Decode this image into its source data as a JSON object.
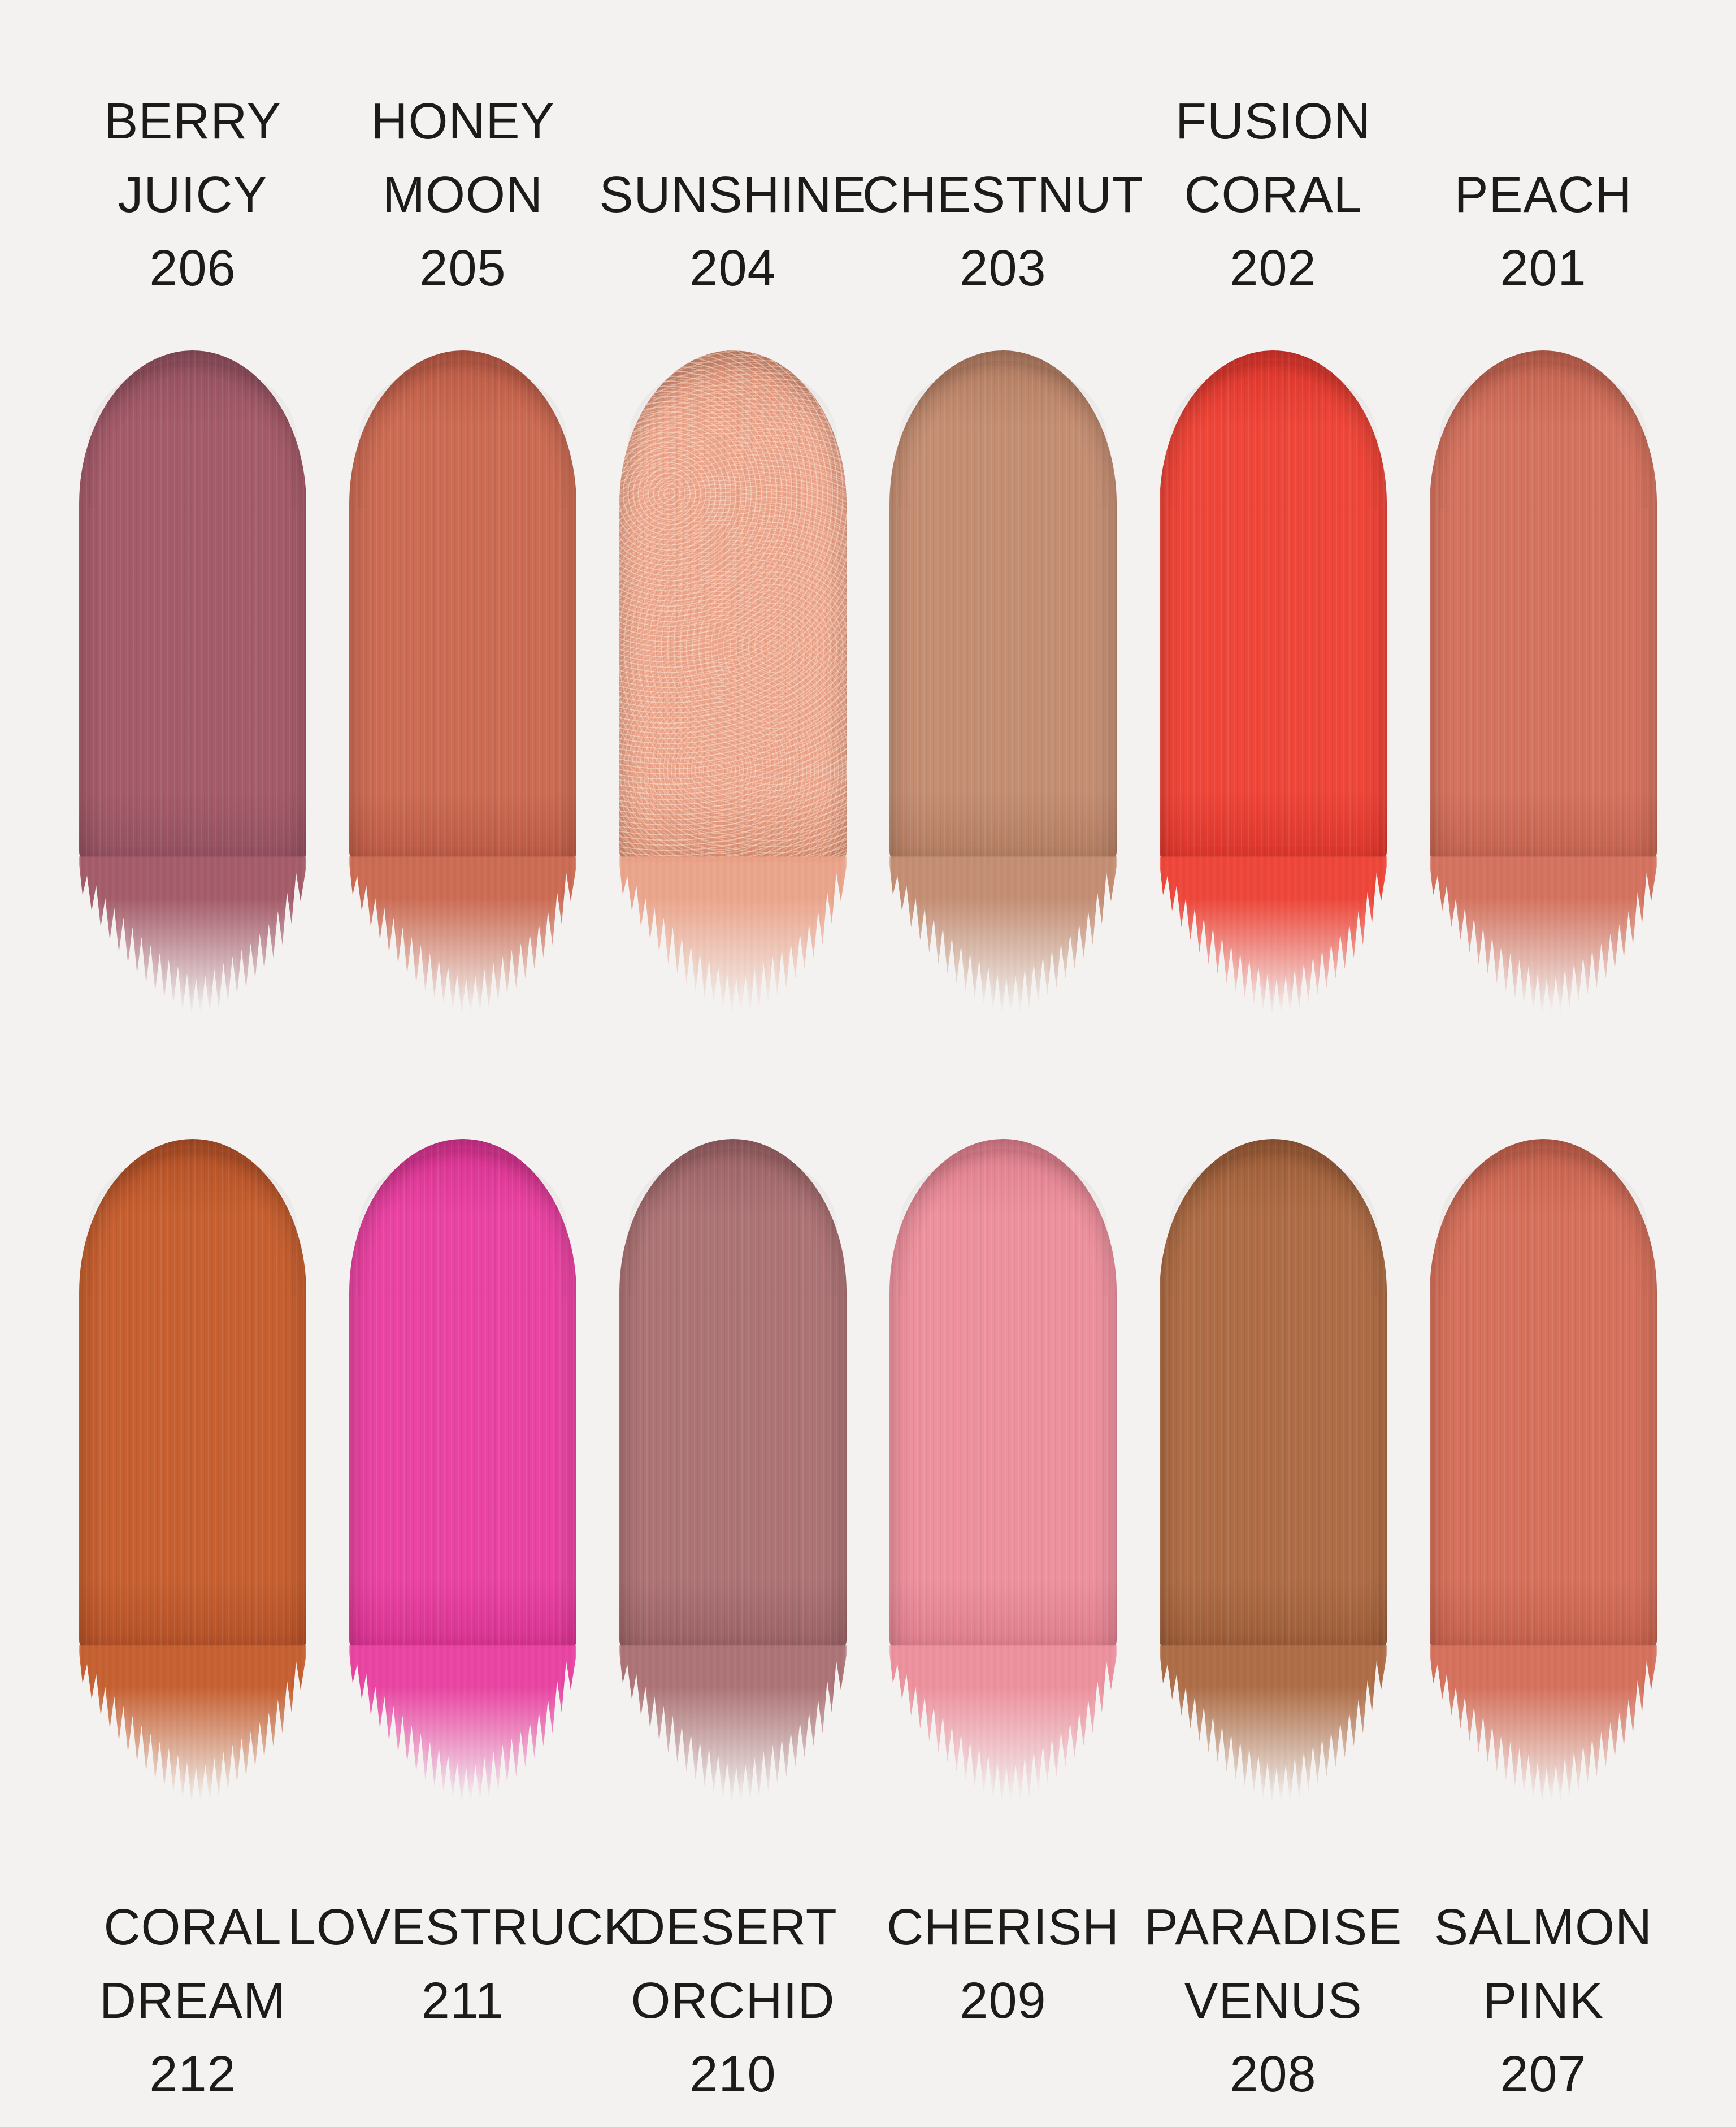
{
  "page": {
    "background_color": "#f3f2f1",
    "text_color": "#1c1b1a"
  },
  "rows": [
    {
      "id": "top",
      "label_position": "above",
      "shades": [
        {
          "name": "BERRY JUICY",
          "name_lines": [
            "BERRY",
            "JUICY"
          ],
          "number": "206",
          "color": "#a55c6a",
          "color_deep": "#92505f",
          "finish": "matte"
        },
        {
          "name": "HONEY MOON",
          "name_lines": [
            "HONEY",
            "MOON"
          ],
          "number": "205",
          "color": "#cc6c54",
          "color_deep": "#ba5a45",
          "finish": "matte"
        },
        {
          "name": "SUNSHINE",
          "name_lines": [
            "SUNSHINE"
          ],
          "number": "204",
          "color": "#eba288",
          "color_deep": "#d88d71",
          "finish": "shimmer"
        },
        {
          "name": "CHESTNUT",
          "name_lines": [
            "CHESTNUT"
          ],
          "number": "203",
          "color": "#c48e73",
          "color_deep": "#b27c61",
          "finish": "matte"
        },
        {
          "name": "FUSION CORAL",
          "name_lines": [
            "FUSION",
            "CORAL"
          ],
          "number": "202",
          "color": "#ee4639",
          "color_deep": "#da362d",
          "finish": "matte"
        },
        {
          "name": "PEACH",
          "name_lines": [
            "PEACH"
          ],
          "number": "201",
          "color": "#d4735f",
          "color_deep": "#c2624f",
          "finish": "matte"
        }
      ]
    },
    {
      "id": "bottom",
      "label_position": "below",
      "shades": [
        {
          "name": "CORAL DREAM",
          "name_lines": [
            "CORAL",
            "DREAM"
          ],
          "number": "212",
          "color": "#c66031",
          "color_deep": "#b25028",
          "finish": "matte"
        },
        {
          "name": "LOVESTRUCK",
          "name_lines": [
            "LOVESTRUCK"
          ],
          "number": "211",
          "color": "#e944a2",
          "color_deep": "#d6328f",
          "finish": "matte"
        },
        {
          "name": "DESERT ORCHID",
          "name_lines": [
            "DESERT",
            "ORCHID"
          ],
          "number": "210",
          "color": "#ad7476",
          "color_deep": "#9a6265",
          "finish": "matte"
        },
        {
          "name": "CHERISH",
          "name_lines": [
            "CHERISH"
          ],
          "number": "209",
          "color": "#ed919e",
          "color_deep": "#dd7d8c",
          "finish": "matte"
        },
        {
          "name": "PARADISE VENUS",
          "name_lines": [
            "PARADISE",
            "VENUS"
          ],
          "number": "208",
          "color": "#ae6d46",
          "color_deep": "#9b5c38",
          "finish": "matte"
        },
        {
          "name": "SALMON PINK",
          "name_lines": [
            "SALMON",
            "PINK"
          ],
          "number": "207",
          "color": "#d5715c",
          "color_deep": "#c3604c",
          "finish": "matte"
        }
      ]
    }
  ]
}
